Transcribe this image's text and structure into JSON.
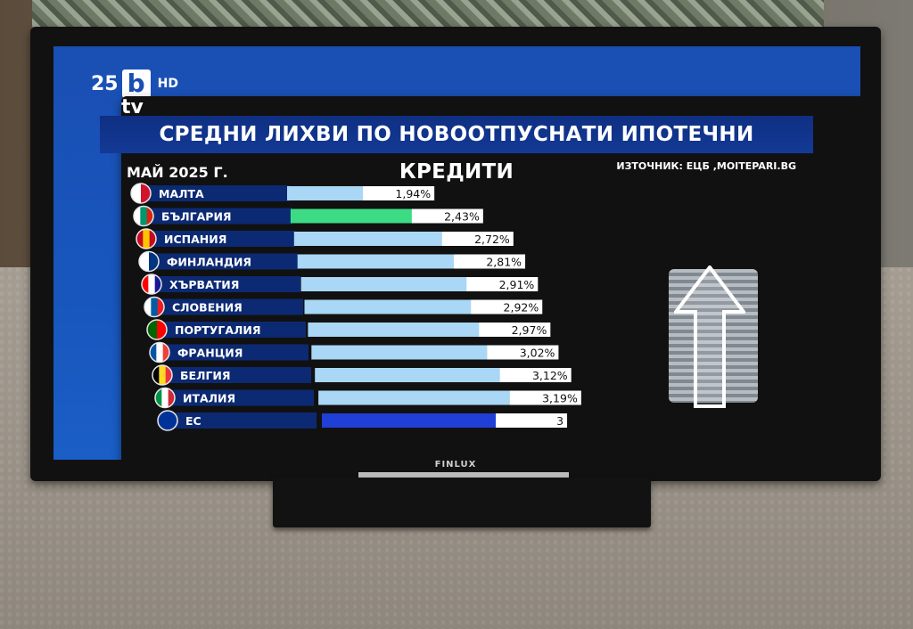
{
  "logo": {
    "number": "25",
    "letter": "b",
    "tv": "tv",
    "hd": "HD"
  },
  "tv_brand": "FINLUX",
  "chart_data": {
    "type": "bar",
    "title": "СРЕДНИ ЛИХВИ ПО НОВООТПУСНАТИ ИПОТЕЧНИ КРЕДИТИ",
    "subtitle": "МАЙ 2025 Г.",
    "source": "ИЗТОЧНИК: ЕЦБ ,MOITEPARI.BG",
    "categories": [
      "МАЛТА",
      "БЪЛГАРИЯ",
      "ИСПАНИЯ",
      "ФИНЛАНДИЯ",
      "ХЪРВАТИЯ",
      "СЛОВЕНИЯ",
      "ПОРТУГАЛИЯ",
      "ФРАНЦИЯ",
      "БЕЛГИЯ",
      "ИТАЛИЯ",
      "ЕС"
    ],
    "values": [
      1.94,
      2.43,
      2.72,
      2.81,
      2.91,
      2.92,
      2.97,
      3.02,
      3.12,
      3.19,
      3.0
    ],
    "value_labels": [
      "1,94%",
      "2,43%",
      "2,72%",
      "2,81%",
      "2,91%",
      "2,92%",
      "2,97%",
      "3,02%",
      "3,12%",
      "3,19%",
      "3"
    ],
    "highlight_colors": {
      "default": "#a9d7f5",
      "bulgaria": "#3ddc84",
      "eu": "#1f3fd6"
    },
    "decoration": "%",
    "flag_icons": [
      "malta-flag-icon",
      "bulgaria-flag-icon",
      "spain-flag-icon",
      "finland-flag-icon",
      "croatia-flag-icon",
      "slovenia-flag-icon",
      "portugal-flag-icon",
      "france-flag-icon",
      "belgium-flag-icon",
      "italy-flag-icon",
      "eu-flag-icon"
    ]
  }
}
